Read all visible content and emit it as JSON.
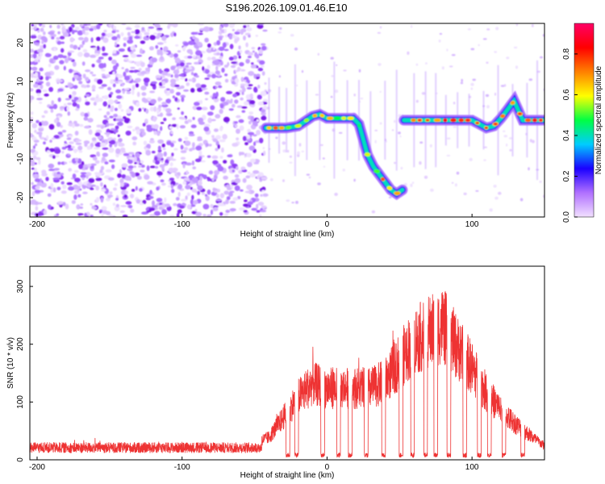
{
  "title": "S196.2026.109.01.46.E10",
  "chart_data": [
    {
      "type": "heatmap",
      "title": "S196.2026.109.01.46.E10",
      "xlabel": "Height of straight line (km)",
      "ylabel": "Frequency (Hz)",
      "xlim": [
        -205,
        150
      ],
      "ylim": [
        -25,
        25
      ],
      "xticks": [
        -200,
        -100,
        0,
        100
      ],
      "yticks": [
        -20,
        -10,
        0,
        10,
        20
      ],
      "noise_region_x": [
        -205,
        -45
      ],
      "gap_x": [
        52,
        53
      ],
      "signal_track": {
        "x": [
          -42,
          -35,
          -28,
          -20,
          -10,
          -5,
          0,
          10,
          18,
          22,
          25,
          28,
          32,
          36,
          40,
          44,
          48,
          52,
          53,
          60,
          70,
          80,
          90,
          100,
          105,
          110,
          115,
          120,
          125,
          129,
          135,
          140,
          150
        ],
        "freq": [
          -2,
          -2,
          -2,
          -1.5,
          1,
          1.5,
          0.5,
          0.5,
          0.5,
          -1,
          -5,
          -9,
          -12,
          -14,
          -16,
          -18,
          -19,
          -18,
          0,
          0,
          0,
          0,
          0,
          0,
          -1,
          -2,
          -1.5,
          0.5,
          3,
          5,
          0,
          0,
          0
        ]
      },
      "colorbar": {
        "label": "Normalized spectral amplitude",
        "range": [
          0.0,
          0.95
        ],
        "ticks": [
          0.0,
          0.2,
          0.4,
          0.6,
          0.8
        ],
        "tick_labels": [
          "0.0",
          "0.2",
          "0.4",
          "0.6",
          "0.8"
        ],
        "colors": [
          "#f2e0ff",
          "#b070ff",
          "#1a00ff",
          "#00ccff",
          "#00ff44",
          "#ffff00",
          "#ff8000",
          "#ff0000",
          "#ff0066"
        ]
      }
    },
    {
      "type": "line",
      "xlabel": "Height of straight line (km)",
      "ylabel": "SNR (10 * v/v)",
      "xlim": [
        -205,
        150
      ],
      "ylim": [
        0,
        335
      ],
      "xticks": [
        -200,
        -100,
        0,
        100
      ],
      "yticks": [
        0,
        100,
        200,
        300
      ],
      "color": "#ee3333",
      "envelope": {
        "x": [
          -205,
          -150,
          -100,
          -60,
          -40,
          -30,
          -20,
          -10,
          0,
          10,
          20,
          30,
          40,
          50,
          60,
          70,
          80,
          90,
          100,
          110,
          120,
          130,
          140,
          150
        ],
        "y": [
          28,
          27,
          26,
          28,
          50,
          95,
          140,
          170,
          160,
          160,
          160,
          160,
          175,
          220,
          265,
          285,
          300,
          250,
          205,
          150,
          110,
          80,
          55,
          30
        ]
      },
      "dropouts_x": [
        -27,
        -21,
        -3,
        8,
        16,
        27,
        39,
        51,
        59,
        68,
        75,
        84,
        95,
        105,
        112,
        122,
        135
      ]
    }
  ]
}
